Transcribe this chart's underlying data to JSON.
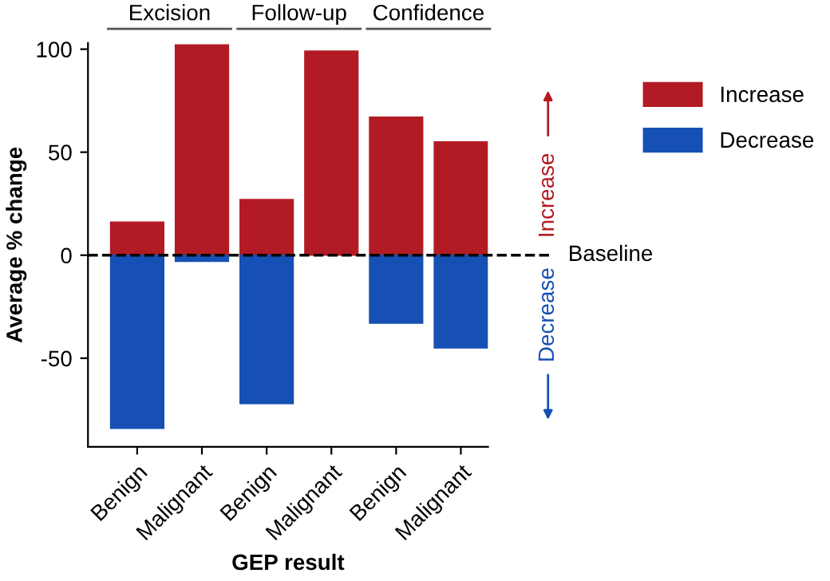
{
  "chart_data": {
    "type": "bar",
    "xlabel": "GEP result",
    "ylabel": "Average % change",
    "categories": [
      "Benign",
      "Malignant",
      "Benign",
      "Malignant",
      "Benign",
      "Malignant"
    ],
    "series": [
      {
        "name": "Increase",
        "color": "#b31b24",
        "values": [
          16,
          102,
          27,
          99,
          67,
          55
        ]
      },
      {
        "name": "Decrease",
        "color": "#1650b4",
        "values": [
          -84,
          -3,
          -72,
          null,
          -33,
          -45
        ]
      }
    ],
    "stacked": true,
    "ylim": [
      -93,
      103
    ],
    "yticks": [
      -50,
      0,
      50,
      100
    ],
    "ref_lines": [
      {
        "axis": "y",
        "value": 0,
        "label": "Baseline",
        "color": "#000000",
        "line_style": "dashed"
      }
    ],
    "annotations": [
      "Excision",
      "Follow-up",
      "Confidence",
      "Increase",
      "Decrease"
    ],
    "legend": "top right",
    "grid": false
  }
}
